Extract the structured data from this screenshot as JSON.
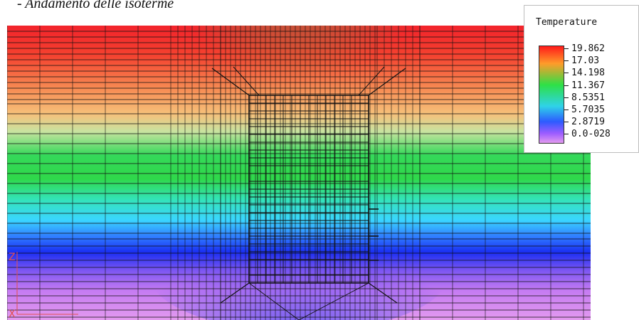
{
  "caption": "- Andamento delle isoterme",
  "legend": {
    "title": "Temperature",
    "values": [
      "19.862",
      "17.03",
      "14.198",
      "11.367",
      "8.5351",
      "5.7035",
      "2.8719",
      "0.0-028"
    ]
  },
  "axis_markers": [
    "Z",
    "X"
  ],
  "colors": {
    "hot": "#f2232b",
    "warm": "#f7a060",
    "mid": "#2fd84a",
    "cool": "#3ad6ff",
    "cold": "#1a2ef2",
    "coldest": "#e39aef",
    "mesh": "#111111",
    "axis": "#e05050"
  }
}
